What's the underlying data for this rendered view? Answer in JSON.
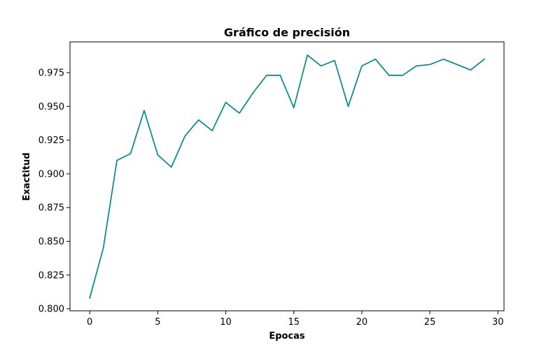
{
  "chart_data": {
    "type": "line",
    "title": "Gráfico de precisión",
    "xlabel": "Epocas",
    "ylabel": "Exactitud",
    "xlim": [
      -1.45,
      30.45
    ],
    "ylim": [
      0.7985,
      0.9978
    ],
    "xticks": [
      0,
      5,
      10,
      15,
      20,
      25,
      30
    ],
    "yticks": [
      0.8,
      0.825,
      0.85,
      0.875,
      0.9,
      0.925,
      0.95,
      0.975
    ],
    "xtick_labels": [
      "0",
      "5",
      "10",
      "15",
      "20",
      "25",
      "30"
    ],
    "ytick_labels": [
      "0.800",
      "0.825",
      "0.850",
      "0.875",
      "0.900",
      "0.925",
      "0.950",
      "0.975"
    ],
    "grid": false,
    "series": [
      {
        "color": "#008b8b",
        "x": [
          0,
          1,
          2,
          3,
          4,
          5,
          6,
          7,
          8,
          9,
          10,
          11,
          12,
          13,
          14,
          15,
          16,
          17,
          18,
          19,
          20,
          21,
          22,
          23,
          24,
          25,
          26,
          27,
          28,
          29
        ],
        "y": [
          0.808,
          0.845,
          0.91,
          0.915,
          0.947,
          0.914,
          0.905,
          0.928,
          0.94,
          0.932,
          0.953,
          0.945,
          0.96,
          0.973,
          0.973,
          0.949,
          0.988,
          0.98,
          0.984,
          0.95,
          0.98,
          0.985,
          0.973,
          0.973,
          0.98,
          0.981,
          0.985,
          0.981,
          0.977,
          0.985
        ]
      }
    ]
  }
}
